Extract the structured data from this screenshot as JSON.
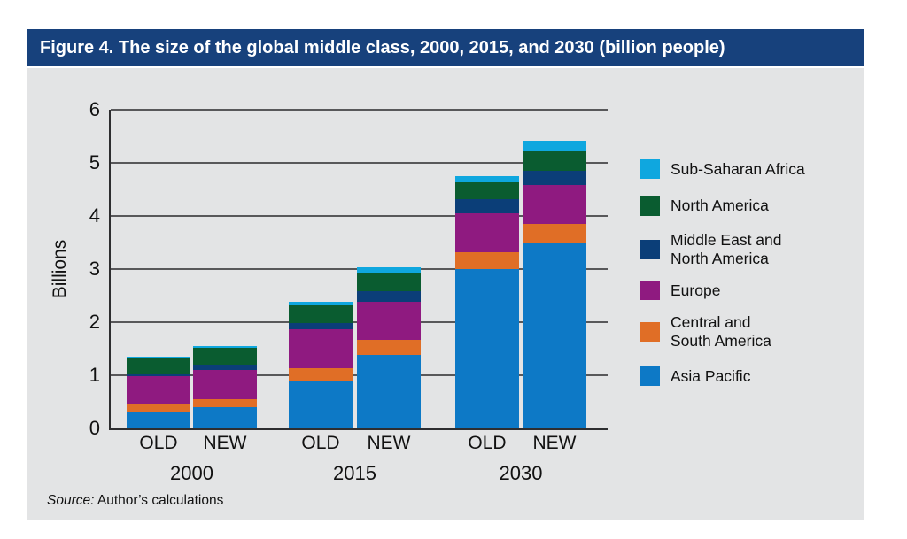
{
  "title_bar": {
    "text": "Figure 4. The size of the global middle class, 2000, 2015, and 2030 (billion people)",
    "bg_color": "#17417c"
  },
  "source": {
    "label": "Source:",
    "text": " Author’s calculations"
  },
  "chart_data": {
    "type": "bar",
    "stacked": true,
    "title": "Figure 4. The size of the global middle class, 2000, 2015, and 2030 (billion people)",
    "ylabel": "Billions",
    "ylim": [
      0,
      6
    ],
    "yticks": [
      0,
      1,
      2,
      3,
      4,
      5,
      6
    ],
    "grid": true,
    "legend_position": "right",
    "groups": [
      "2000",
      "2015",
      "2030"
    ],
    "bar_labels": [
      "OLD",
      "NEW"
    ],
    "categories": [
      "2000 OLD",
      "2000 NEW",
      "2015 OLD",
      "2015 NEW",
      "2030 OLD",
      "2030 NEW"
    ],
    "series": [
      {
        "name": "Asia Pacific",
        "color": "#0d79c6",
        "values": [
          0.31,
          0.4,
          0.9,
          1.38,
          3.0,
          3.49
        ]
      },
      {
        "name": "Central and South America",
        "color": "#e06e26",
        "values": [
          0.15,
          0.15,
          0.24,
          0.29,
          0.32,
          0.36
        ]
      },
      {
        "name": "Europe",
        "color": "#8f1a80",
        "values": [
          0.52,
          0.55,
          0.72,
          0.72,
          0.73,
          0.73
        ]
      },
      {
        "name": "Middle East and North America",
        "color": "#0b3e78",
        "values": [
          0.04,
          0.1,
          0.12,
          0.19,
          0.27,
          0.27
        ]
      },
      {
        "name": "North America",
        "color": "#0a5c30",
        "values": [
          0.3,
          0.32,
          0.33,
          0.34,
          0.31,
          0.36
        ]
      },
      {
        "name": "Sub-Saharan Africa",
        "color": "#0fa7df",
        "values": [
          0.03,
          0.03,
          0.07,
          0.11,
          0.12,
          0.21
        ]
      }
    ],
    "totals": [
      1.35,
      1.55,
      2.38,
      3.03,
      4.75,
      5.42
    ],
    "legend": [
      {
        "label_lines": [
          "Sub-Saharan Africa"
        ],
        "color": "#0fa7df"
      },
      {
        "label_lines": [
          "North America"
        ],
        "color": "#0a5c30"
      },
      {
        "label_lines": [
          "Middle East and",
          "North America"
        ],
        "color": "#0b3e78"
      },
      {
        "label_lines": [
          "Europe"
        ],
        "color": "#8f1a80"
      },
      {
        "label_lines": [
          "Central and",
          "South America"
        ],
        "color": "#e06e26"
      },
      {
        "label_lines": [
          "Asia Pacific"
        ],
        "color": "#0d79c6"
      }
    ]
  }
}
